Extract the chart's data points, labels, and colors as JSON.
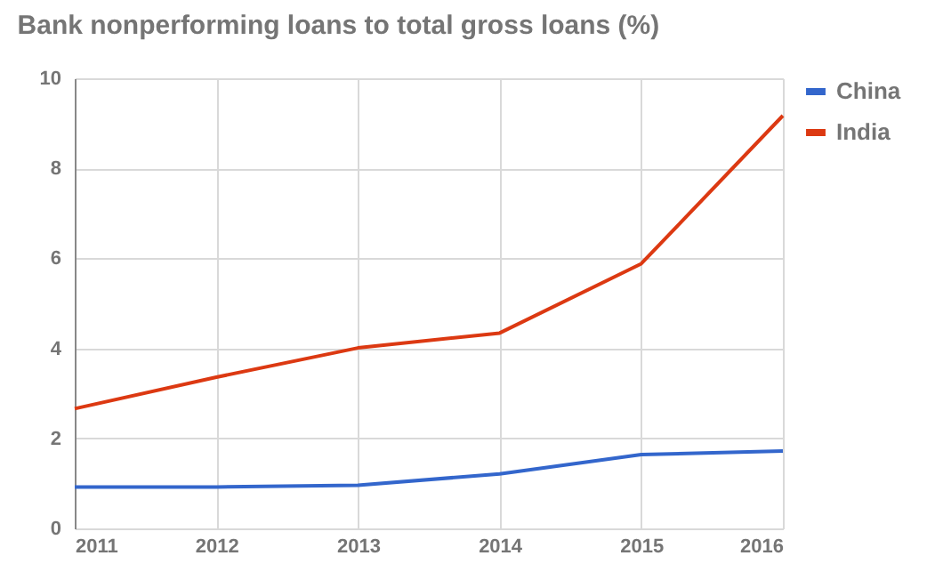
{
  "chart_data": {
    "type": "line",
    "title": "Bank nonperforming loans to total gross loans (%)",
    "x": [
      2011,
      2012,
      2013,
      2014,
      2015,
      2016
    ],
    "xlim": [
      2011,
      2016
    ],
    "xticks": [
      2011,
      2012,
      2013,
      2014,
      2015,
      2016
    ],
    "ylim": [
      0,
      10
    ],
    "yticks": [
      0,
      2,
      4,
      6,
      8,
      10
    ],
    "grid": true,
    "legend": "top right",
    "marker": "none",
    "line_style": "solid",
    "series": [
      {
        "name": "China",
        "color": "#3366cc",
        "values": [
          0.92,
          0.92,
          0.96,
          1.21,
          1.64,
          1.72
        ]
      },
      {
        "name": "India",
        "color": "#dc3912",
        "values": [
          2.66,
          3.36,
          4.01,
          4.34,
          5.88,
          9.17
        ]
      }
    ]
  }
}
